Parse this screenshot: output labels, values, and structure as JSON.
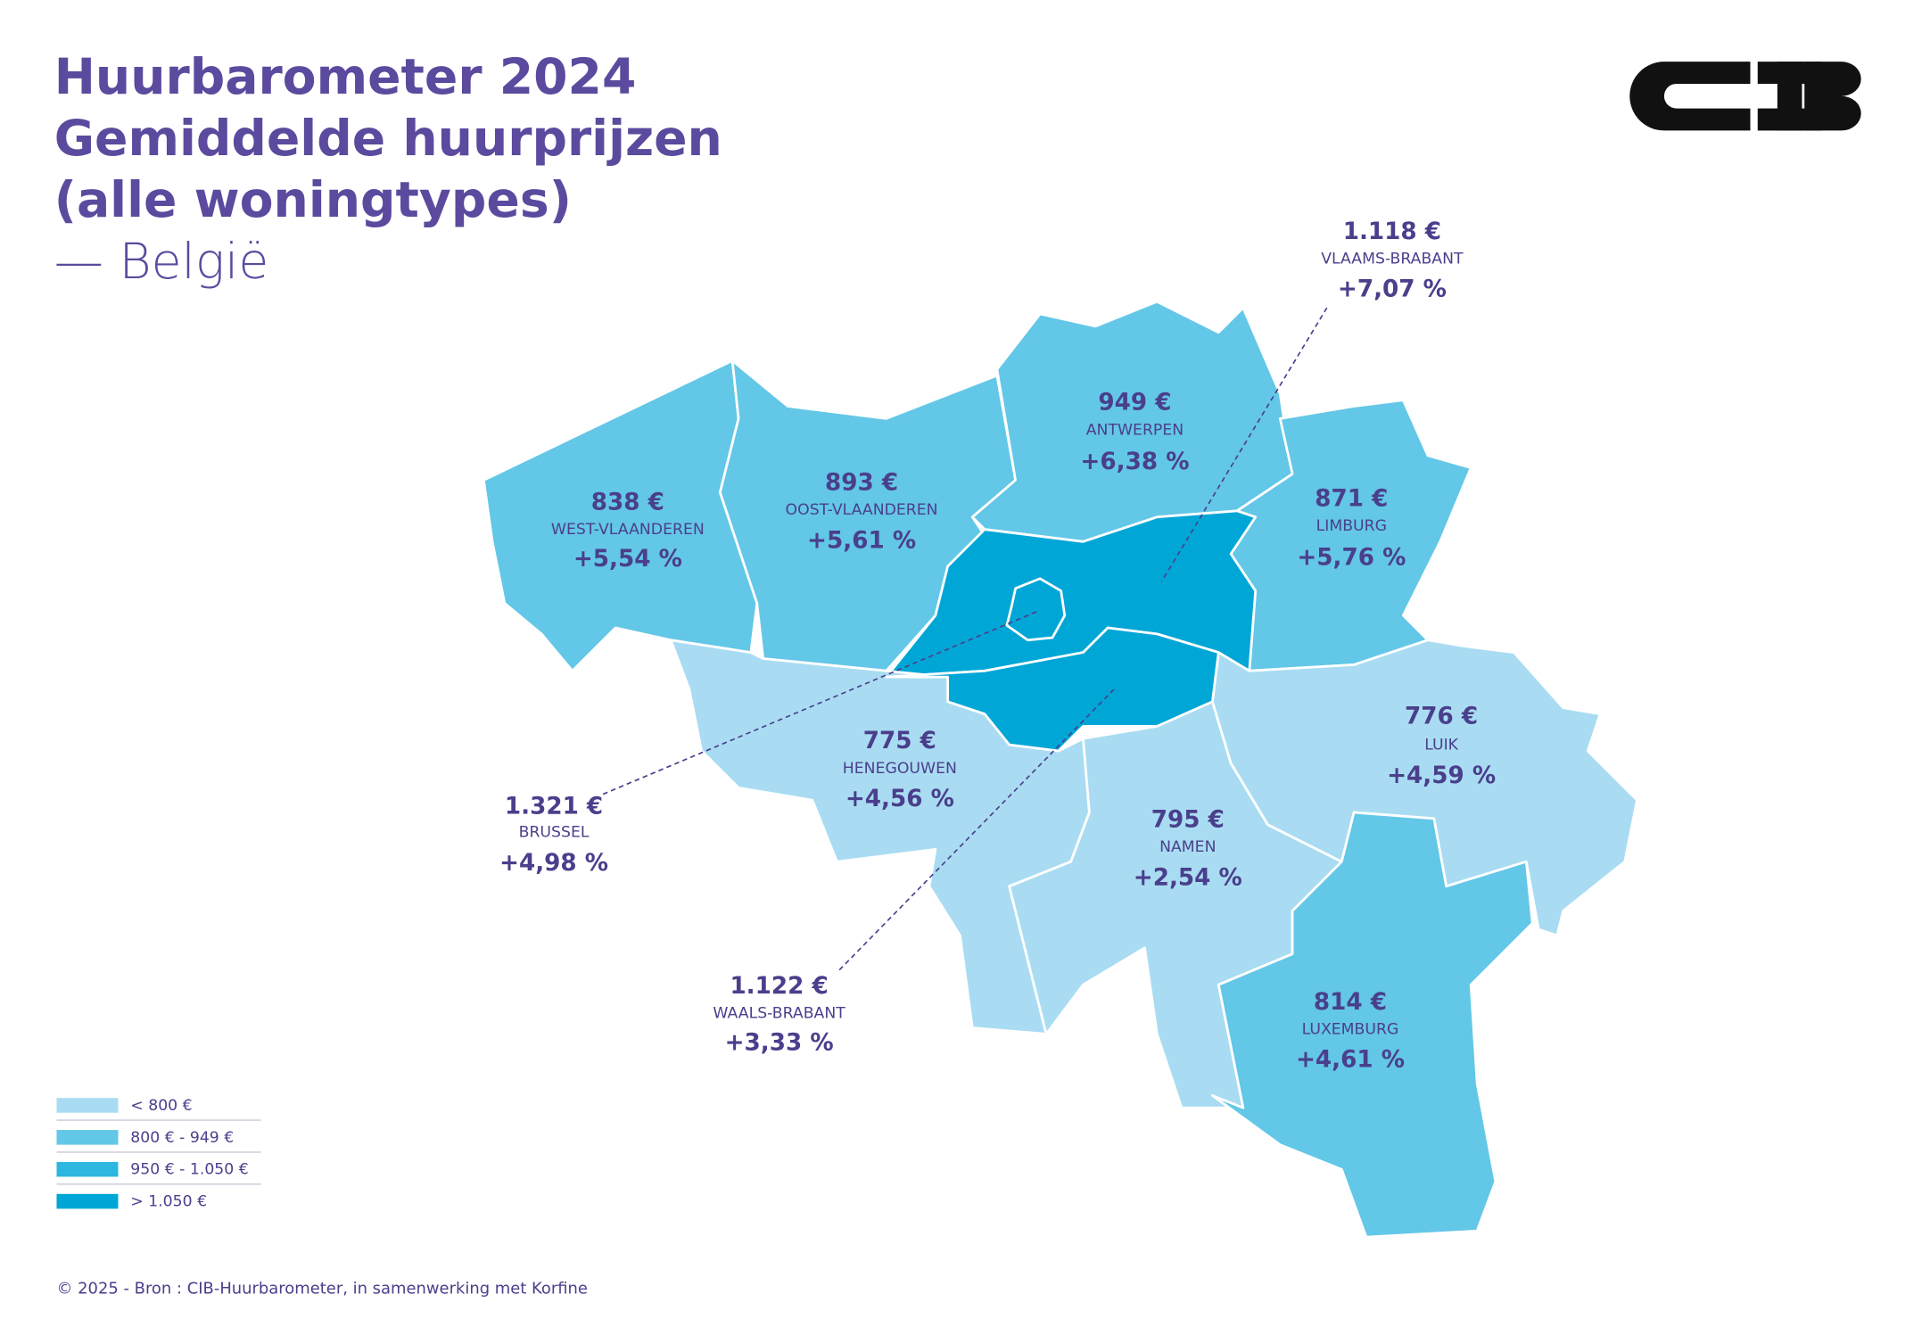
{
  "header": {
    "title": [
      "Huurbarometer 2024",
      "Gemiddelde huurprijzen",
      "(alle woningtypes)"
    ],
    "subtitle": "— België"
  },
  "regions": [
    {
      "name": "WEST-VLAANDEREN",
      "price": "838 €",
      "change": "+5,54 %"
    },
    {
      "name": "OOST-VLAANDEREN",
      "price": "893 €",
      "change": "+5,61 %"
    },
    {
      "name": "ANTWERPEN",
      "price": "949 €",
      "change": "+6,38 %"
    },
    {
      "name": "LIMBURG",
      "price": "871 €",
      "change": "+5,76 %"
    },
    {
      "name": "VLAAMS-BRABANT",
      "price": "1.118 €",
      "change": "+7,07 %"
    },
    {
      "name": "BRUSSEL",
      "price": "1.321 €",
      "change": "+4,98 %"
    },
    {
      "name": "WAALS-BRABANT",
      "price": "1.122 €",
      "change": "+3,33 %"
    },
    {
      "name": "HENEGOUWEN",
      "price": "775 €",
      "change": "+4,56 %"
    },
    {
      "name": "NAMEN",
      "price": "795 €",
      "change": "+2,54 %"
    },
    {
      "name": "LUIK",
      "price": "776 €",
      "change": "+4,59 %"
    },
    {
      "name": "LUXEMBURG",
      "price": "814 €",
      "change": "+4,61 %"
    }
  ],
  "legend": [
    "< 800 €",
    "800 € - 949 €",
    "950 € - 1.050 €",
    "> 1.050 €"
  ],
  "footer": "© 2025 - Bron : CIB-Huurbarometer, in samenwerking met Korfine"
}
